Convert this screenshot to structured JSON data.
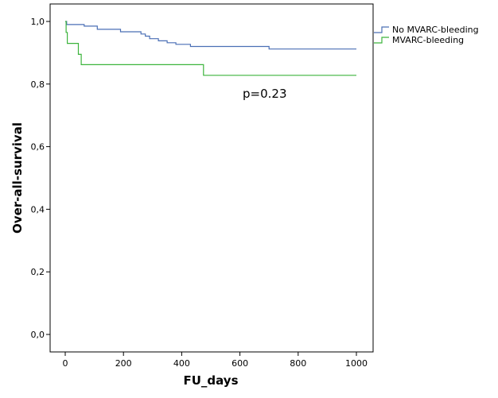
{
  "chart_data": {
    "type": "line",
    "xlabel": "FU_days",
    "ylabel": "Over-all-survival",
    "xlim": [
      0,
      1000
    ],
    "ylim": [
      0,
      1
    ],
    "x_ticks": [
      0,
      200,
      400,
      600,
      800,
      1000
    ],
    "x_tick_labels": [
      "0",
      "200",
      "400",
      "600",
      "800",
      "1000"
    ],
    "y_ticks": [
      0,
      0.2,
      0.4,
      0.6,
      0.8,
      1.0
    ],
    "y_tick_labels": [
      "0,0",
      "0,2",
      "0,4",
      "0,6",
      "0,8",
      "1,0"
    ],
    "grid": false,
    "legend_position": "top-right",
    "annotation": "p=0.23",
    "series": [
      {
        "name": "No MVARC-bleeding",
        "color": "#4a6fb5",
        "x": [
          0,
          5,
          65,
          110,
          190,
          260,
          275,
          290,
          320,
          350,
          380,
          430,
          700,
          1000
        ],
        "y": [
          1.0,
          0.99,
          0.985,
          0.975,
          0.967,
          0.96,
          0.953,
          0.945,
          0.938,
          0.932,
          0.927,
          0.92,
          0.912,
          0.912
        ]
      },
      {
        "name": "MVARC-bleeding",
        "color": "#3cb43c",
        "x": [
          0,
          3,
          7,
          20,
          45,
          55,
          475,
          1000
        ],
        "y": [
          1.0,
          0.965,
          0.93,
          0.93,
          0.895,
          0.862,
          0.828,
          0.828
        ]
      }
    ]
  }
}
